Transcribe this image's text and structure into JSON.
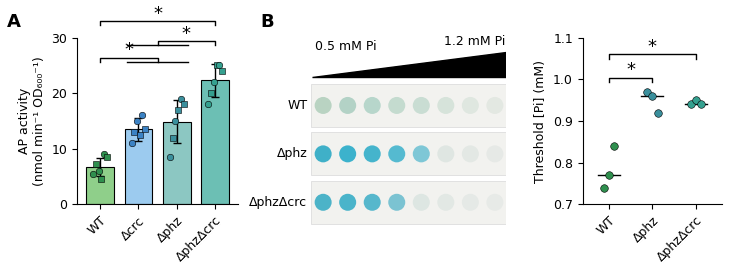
{
  "chart_data": [
    {
      "type": "bar",
      "title": "A",
      "categories": [
        "WT",
        "Δcrc",
        "Δphz",
        "ΔphzΔcrc"
      ],
      "values": [
        6.8,
        13.5,
        14.9,
        22.3
      ],
      "errors": [
        1.6,
        2.0,
        3.8,
        3.0
      ],
      "points": [
        [
          5.5,
          7.2,
          6.0,
          4.5,
          9.0,
          8.5
        ],
        [
          11.0,
          13.0,
          15.0,
          12.5,
          16.0,
          13.5
        ],
        [
          8.5,
          12.0,
          15.0,
          17.0,
          19.0,
          18.0
        ],
        [
          18.0,
          20.0,
          22.0,
          25.0,
          25.0,
          24.0
        ]
      ],
      "colors": [
        "#8fcf8a",
        "#9ccbef",
        "#8cc7c2",
        "#6cbfb4"
      ],
      "point_colors": [
        "#2f8f4e",
        "#3b82c4",
        "#3a8f9c",
        "#35a08f"
      ],
      "y_label": "AP activity\n(nmol min⁻¹ OD₆₀₀⁻¹)",
      "ylim": [
        0,
        30
      ],
      "yticks": [
        0,
        10,
        20,
        30
      ],
      "significance": [
        {
          "from": [
            "WT"
          ],
          "to": [
            "Δcrc",
            "Δphz"
          ],
          "text": "*"
        },
        {
          "from": [
            "Δcrc",
            "Δphz"
          ],
          "to": [
            "ΔphzΔcrc"
          ],
          "text": "*"
        },
        {
          "from": [
            "WT"
          ],
          "to": [
            "ΔphzΔcrc"
          ],
          "text": "*"
        }
      ]
    },
    {
      "type": "scatter",
      "categories": [
        "WT",
        "Δphz",
        "ΔphzΔcrc"
      ],
      "points": [
        [
          0.74,
          0.77,
          0.84
        ],
        [
          0.97,
          0.96,
          0.92
        ],
        [
          0.94,
          0.95,
          0.94
        ]
      ],
      "medians": [
        0.77,
        0.96,
        0.94
      ],
      "point_colors": [
        "#2f8f4e",
        "#3a8f9c",
        "#35a08f"
      ],
      "y_label": "Threshold [Pi] (mM)",
      "ylim": [
        0.7,
        1.1
      ],
      "yticks": [
        0.7,
        0.8,
        0.9,
        1.0,
        1.1
      ],
      "significance": [
        {
          "from": [
            "WT"
          ],
          "to": [
            "Δphz"
          ],
          "text": "*"
        },
        {
          "from": [
            "WT"
          ],
          "to": [
            "ΔphzΔcrc"
          ],
          "text": "*"
        }
      ]
    }
  ],
  "spot_assay": {
    "label": "B",
    "start_label": "0.5 mM Pi",
    "end_label": "1.2 mM Pi",
    "rows": [
      {
        "name": "WT",
        "colors": [
          "#b9d3c2",
          "#b3d2c6",
          "#b7d6cb",
          "#c4dbcf",
          "#c9ddd3",
          "#d6e3da",
          "#dfe7e0",
          "#e3e8e2"
        ]
      },
      {
        "name": "Δphz",
        "colors": [
          "#3fb0c8",
          "#3cb2cc",
          "#45b4cc",
          "#55bad0",
          "#7ec7d6",
          "#dfe6e2",
          "#e3e8e4",
          "#e6e9e6"
        ]
      },
      {
        "name": "ΔphzΔcrc",
        "colors": [
          "#4cb3c8",
          "#4ab4ca",
          "#56b7cc",
          "#7bc3d2",
          "#dde6e2",
          "#e2e8e4",
          "#e5e9e6",
          "#e7eae7"
        ]
      }
    ]
  }
}
